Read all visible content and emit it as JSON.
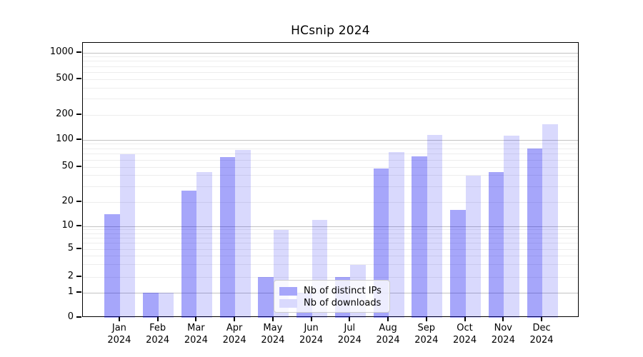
{
  "title": "HCsnip 2024",
  "chart_data": {
    "type": "bar",
    "title": "HCsnip 2024",
    "categories": [
      "Jan 2024",
      "Feb 2024",
      "Mar 2024",
      "Apr 2024",
      "May 2024",
      "Jun 2024",
      "Jul 2024",
      "Aug 2024",
      "Sep 2024",
      "Oct 2024",
      "Nov 2024",
      "Dec 2024"
    ],
    "series": [
      {
        "name": "Nb of distinct IPs",
        "color": "#a6a6fa",
        "rgba": "rgba(0,0,240,0.35)",
        "values": [
          14,
          1,
          27,
          64,
          2,
          1,
          2,
          48,
          66,
          16,
          44,
          80
        ]
      },
      {
        "name": "Nb of downloads",
        "color": "#d9d9fd",
        "rgba": "rgba(0,0,240,0.15)",
        "values": [
          70,
          1,
          44,
          78,
          9,
          12,
          3,
          74,
          115,
          40,
          112,
          155
        ]
      }
    ],
    "yscale": "symlog",
    "yticks": [
      0,
      1,
      2,
      5,
      10,
      20,
      50,
      100,
      200,
      500,
      1000
    ],
    "ylim": [
      0,
      1000
    ],
    "xlabel": "",
    "ylabel": "",
    "grid": "major and minor horizontal gridlines",
    "legend_position": "lower center, inside plot"
  }
}
